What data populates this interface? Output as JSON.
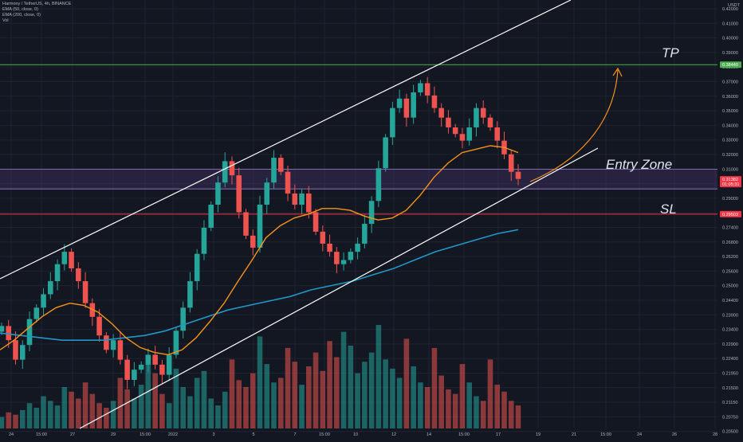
{
  "header": {
    "title_line": "Harmony / TetherUS, 4h, BINANCE",
    "indicators": [
      "EMA (50, close, 0)",
      "EMA (200, close, 0)",
      "Vol"
    ]
  },
  "price_axis": {
    "currency": "USDT",
    "ticks": [
      "0.42000",
      "0.41000",
      "0.40000",
      "0.39000",
      "0.38000",
      "0.37000",
      "0.36000",
      "0.35000",
      "0.34000",
      "0.33000",
      "0.32000",
      "0.31000",
      "0.30000",
      "0.29000",
      "0.28000",
      "0.27400",
      "0.26800",
      "0.26200",
      "0.25600",
      "0.25000",
      "0.24400",
      "0.23900",
      "0.23400",
      "0.22900",
      "0.22400",
      "0.21950",
      "0.21500",
      "0.21150",
      "0.20750",
      "0.20500"
    ]
  },
  "time_axis": {
    "ticks": [
      "24",
      "15:00",
      "27",
      "29",
      "15:00",
      "2022",
      "3",
      "5",
      "7",
      "15:00",
      "10",
      "12",
      "14",
      "15:00",
      "17",
      "19",
      "21",
      "15:00",
      "24",
      "26",
      "28"
    ]
  },
  "tags": [
    {
      "label": "0.38440",
      "color": "#4caf50"
    },
    {
      "label": "0.31382",
      "sublabel": "01:05:31",
      "color": "#f23645"
    },
    {
      "label": "0.29503",
      "color": "#f23645"
    }
  ],
  "annotations": {
    "tp": "TP",
    "entry": "Entry Zone",
    "sl": "SL"
  },
  "colors": {
    "background": "#131722",
    "up": "#26a69a",
    "down": "#ef5350",
    "ema50": "#f7931a",
    "ema200": "#2196c8",
    "tp_line": "#4caf50",
    "sl_line": "#f23645",
    "zone_fill": "#5c3f8a",
    "channel": "#ffffff"
  },
  "chart_data": {
    "type": "candlestick",
    "symbol": "Harmony / TetherUS",
    "interval": "4h",
    "exchange": "BINANCE",
    "ylim": [
      0.203,
      0.425
    ],
    "y_scale": "log",
    "tp_level": 0.3844,
    "sl_level": 0.29503,
    "last_price": 0.31382,
    "entry_zone": [
      0.3085,
      0.3195
    ],
    "close_path": [
      0.242,
      0.236,
      0.228,
      0.234,
      0.245,
      0.25,
      0.256,
      0.262,
      0.27,
      0.276,
      0.268,
      0.262,
      0.252,
      0.246,
      0.238,
      0.232,
      0.236,
      0.228,
      0.22,
      0.224,
      0.226,
      0.23,
      0.226,
      0.222,
      0.23,
      0.24,
      0.25,
      0.262,
      0.275,
      0.288,
      0.3,
      0.312,
      0.324,
      0.316,
      0.296,
      0.284,
      0.278,
      0.3,
      0.312,
      0.326,
      0.318,
      0.306,
      0.3,
      0.306,
      0.296,
      0.286,
      0.28,
      0.276,
      0.27,
      0.272,
      0.276,
      0.28,
      0.29,
      0.302,
      0.32,
      0.338,
      0.356,
      0.362,
      0.35,
      0.366,
      0.372,
      0.364,
      0.356,
      0.35,
      0.344,
      0.34,
      0.336,
      0.344,
      0.356,
      0.35,
      0.344,
      0.336,
      0.328,
      0.318,
      0.314
    ],
    "ema50_path": [
      0.232,
      0.236,
      0.241,
      0.246,
      0.25,
      0.252,
      0.251,
      0.248,
      0.243,
      0.237,
      0.233,
      0.231,
      0.23,
      0.232,
      0.237,
      0.244,
      0.252,
      0.262,
      0.272,
      0.283,
      0.289,
      0.293,
      0.295,
      0.298,
      0.298,
      0.297,
      0.294,
      0.292,
      0.293,
      0.297,
      0.305,
      0.315,
      0.323,
      0.329,
      0.331,
      0.333,
      0.332,
      0.329
    ],
    "ema200_path": [
      0.239,
      0.238,
      0.237,
      0.236,
      0.236,
      0.236,
      0.237,
      0.238,
      0.24,
      0.243,
      0.246,
      0.249,
      0.251,
      0.253,
      0.255,
      0.258,
      0.26,
      0.262,
      0.265,
      0.268,
      0.272,
      0.276,
      0.279,
      0.282,
      0.285,
      0.287
    ],
    "volume": [
      5,
      7,
      6,
      8,
      11,
      9,
      14,
      12,
      10,
      18,
      16,
      13,
      20,
      15,
      11,
      9,
      12,
      22,
      17,
      13,
      19,
      28,
      24,
      15,
      11,
      26,
      18,
      14,
      22,
      25,
      13,
      10,
      16,
      30,
      21,
      18,
      24,
      40,
      28,
      20,
      22,
      35,
      29,
      19,
      27,
      33,
      25,
      38,
      31,
      42,
      36,
      24,
      29,
      33,
      45,
      30,
      26,
      22,
      39,
      27,
      20,
      18,
      35,
      23,
      17,
      15,
      28,
      20,
      14,
      12,
      30,
      19,
      16,
      12,
      10
    ]
  }
}
